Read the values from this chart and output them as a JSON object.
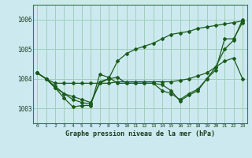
{
  "title": "Graphe pression niveau de la mer (hPa)",
  "background_color": "#cde9f0",
  "grid_color": "#9ecfb8",
  "line_color": "#1a5c1a",
  "x_labels": [
    "0",
    "1",
    "2",
    "3",
    "4",
    "5",
    "6",
    "7",
    "8",
    "9",
    "10",
    "11",
    "12",
    "13",
    "14",
    "15",
    "16",
    "17",
    "18",
    "19",
    "20",
    "21",
    "22",
    "23"
  ],
  "ylim": [
    1002.5,
    1006.5
  ],
  "yticks": [
    1003,
    1004,
    1005,
    1006
  ],
  "series": [
    [
      1004.2,
      1004.0,
      1003.85,
      1003.85,
      1003.85,
      1003.85,
      1003.85,
      1003.85,
      1003.85,
      1003.9,
      1003.9,
      1003.9,
      1003.9,
      1003.9,
      1003.9,
      1003.9,
      1003.95,
      1004.0,
      1004.1,
      1004.2,
      1004.4,
      1004.6,
      1004.7,
      1004.0
    ],
    [
      1004.2,
      1004.0,
      1003.75,
      1003.5,
      1003.4,
      1003.3,
      1003.2,
      1003.85,
      1004.0,
      1004.05,
      1003.85,
      1003.85,
      1003.85,
      1003.85,
      1003.8,
      1003.6,
      1003.25,
      1003.45,
      1003.6,
      1004.0,
      1004.4,
      1005.0,
      1005.3,
      1006.0
    ],
    [
      1004.2,
      1004.0,
      1003.7,
      1003.35,
      1003.05,
      1003.1,
      1003.1,
      1004.15,
      1004.05,
      1003.85,
      1003.85,
      1003.85,
      1003.85,
      1003.85,
      1003.6,
      1003.5,
      1003.3,
      1003.5,
      1003.65,
      1004.0,
      1004.3,
      1005.35,
      1005.35,
      1005.9
    ],
    [
      1004.2,
      1004.0,
      1003.7,
      1003.5,
      1003.3,
      1003.2,
      1003.15,
      1003.9,
      1004.0,
      1004.6,
      1004.85,
      1005.0,
      1005.1,
      1005.2,
      1005.35,
      1005.5,
      1005.55,
      1005.6,
      1005.7,
      1005.75,
      1005.8,
      1005.85,
      1005.9,
      1005.95
    ]
  ],
  "marker": "D",
  "marker_size": 2.0,
  "linewidth": 0.9
}
